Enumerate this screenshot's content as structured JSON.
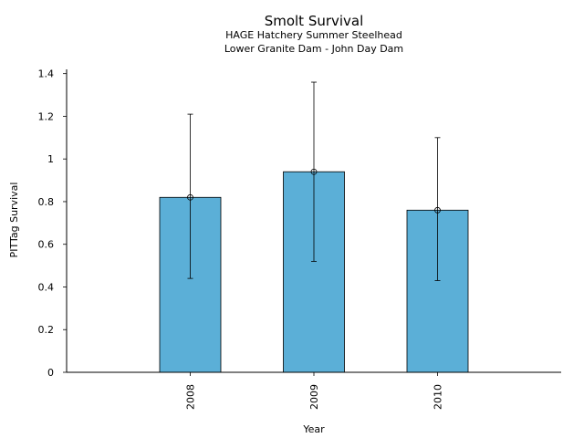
{
  "chart_data": {
    "type": "bar",
    "title": "Smolt Survival",
    "subtitle_lines": [
      "HAGE Hatchery Summer Steelhead",
      "Lower Granite Dam - John Day Dam"
    ],
    "xlabel": "Year",
    "ylabel": "PITTag Survival",
    "categories": [
      "2008",
      "2009",
      "2010"
    ],
    "values": [
      0.82,
      0.94,
      0.76
    ],
    "error_low": [
      0.44,
      0.52,
      0.43
    ],
    "error_high": [
      1.21,
      1.36,
      1.1
    ],
    "ylim": [
      0,
      1.42
    ],
    "yticks": [
      0,
      0.2,
      0.4,
      0.6,
      0.8,
      1,
      1.2,
      1.4
    ],
    "ytick_labels": [
      "0",
      "0.2",
      "0.4",
      "0.6",
      "0.8",
      "1",
      "1.2",
      "1.4"
    ],
    "bar_color": "#5bafd7",
    "grid": false
  }
}
